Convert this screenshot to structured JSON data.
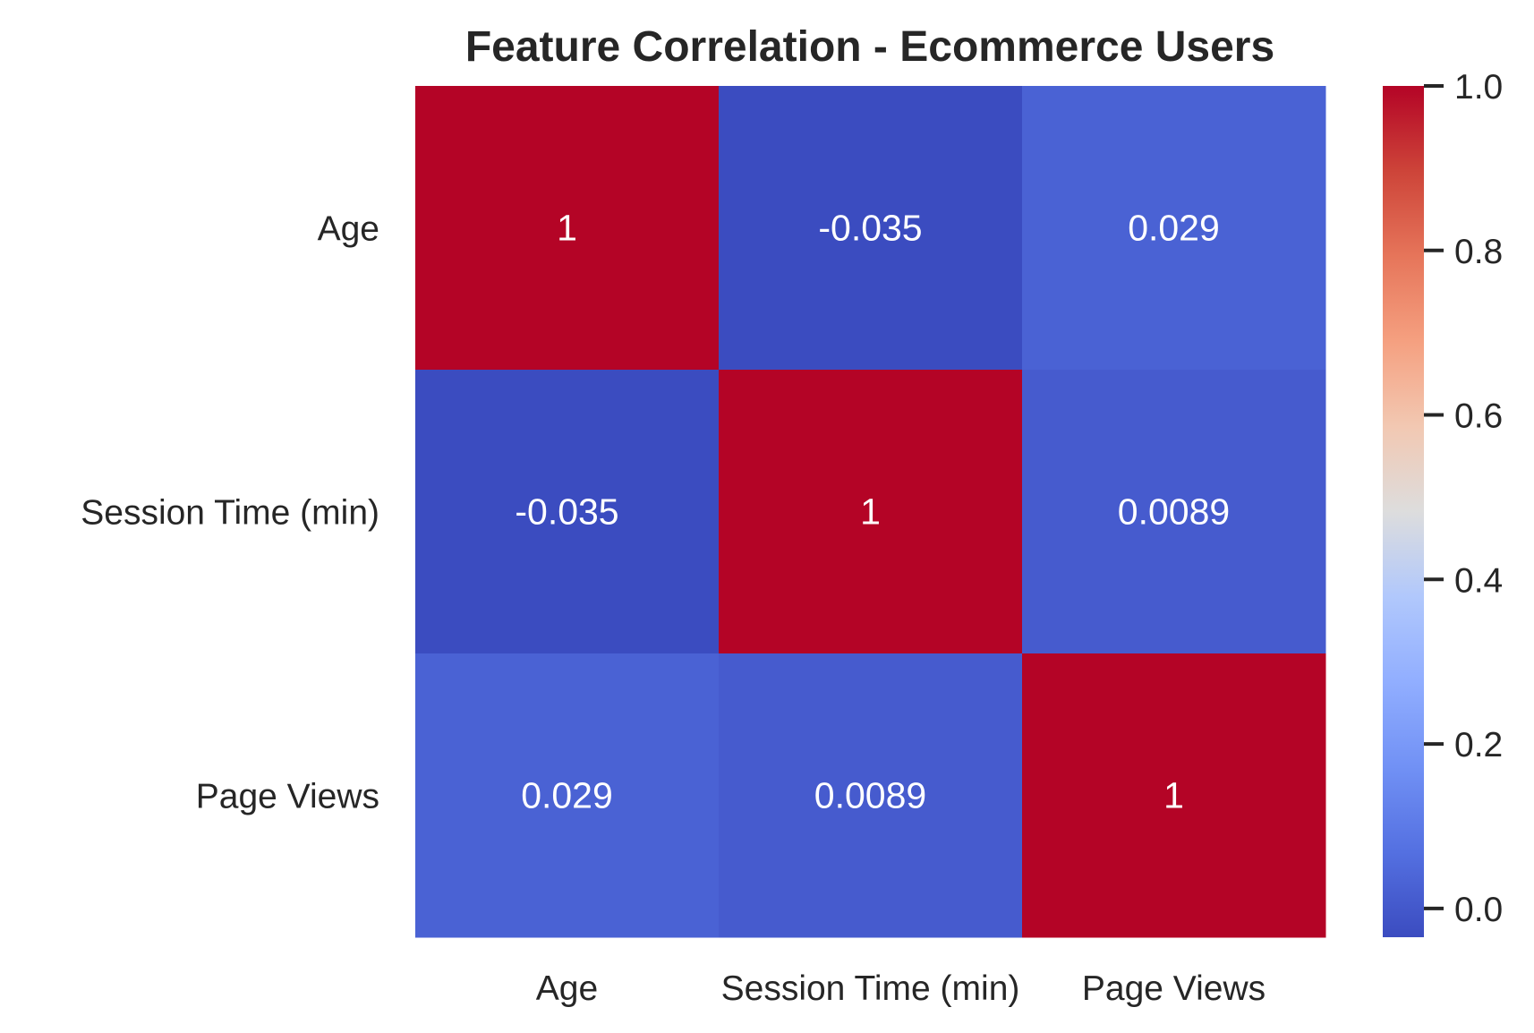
{
  "chart_data": {
    "type": "heatmap",
    "title": "Feature Correlation - Ecommerce Users",
    "row_labels": [
      "Age",
      "Session Time (min)",
      "Page Views"
    ],
    "col_labels": [
      "Age",
      "Session Time (min)",
      "Page Views"
    ],
    "values": [
      [
        1,
        -0.035,
        0.029
      ],
      [
        -0.035,
        1,
        0.0089
      ],
      [
        0.029,
        0.0089,
        1
      ]
    ],
    "annotations": [
      [
        "1",
        "-0.035",
        "0.029"
      ],
      [
        "-0.035",
        "1",
        "0.0089"
      ],
      [
        "0.029",
        "0.0089",
        "1"
      ]
    ],
    "colormap": "coolwarm",
    "colorbar": {
      "vmin": -0.035,
      "vmax": 1.0,
      "ticks": [
        0.0,
        0.2,
        0.4,
        0.6,
        0.8,
        1.0
      ],
      "tick_labels": [
        "0.0",
        "0.2",
        "0.4",
        "0.6",
        "0.8",
        "1.0"
      ]
    },
    "annotation_color": "#ffffff",
    "text_color": "#262626"
  }
}
